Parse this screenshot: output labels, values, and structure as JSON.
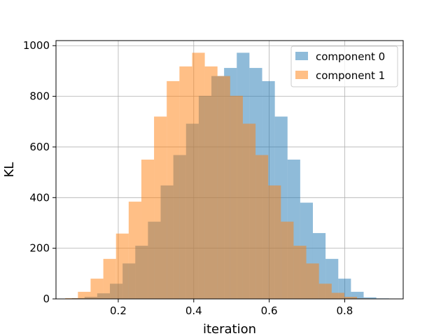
{
  "chart_data": {
    "type": "histogram",
    "title": "",
    "xlabel": "iteration",
    "ylabel": "KL",
    "xlim": [
      0.035,
      0.955
    ],
    "ylim": [
      0,
      1020
    ],
    "xticks": [
      0.2,
      0.4,
      0.6,
      0.8
    ],
    "xtick_labels": [
      "0.2",
      "0.4",
      "0.6",
      "0.8"
    ],
    "yticks": [
      0,
      200,
      400,
      600,
      800,
      1000
    ],
    "ytick_labels": [
      "0",
      "200",
      "400",
      "600",
      "800",
      "1000"
    ],
    "grid": true,
    "legend_position": "upper right",
    "series": [
      {
        "name": "component 0",
        "color": "#1f77b4",
        "alpha": 0.5,
        "bin_edges": [
          0.077,
          0.1106,
          0.1442,
          0.1779,
          0.2115,
          0.2451,
          0.2787,
          0.3123,
          0.3459,
          0.3796,
          0.4132,
          0.4468,
          0.4804,
          0.514,
          0.5476,
          0.5813,
          0.6149,
          0.6485,
          0.6821,
          0.7157,
          0.7493,
          0.783,
          0.8166,
          0.8502,
          0.8838,
          0.9174
        ],
        "counts": [
          3,
          8,
          22,
          60,
          140,
          210,
          305,
          448,
          568,
          692,
          802,
          880,
          912,
          972,
          912,
          860,
          720,
          550,
          380,
          260,
          158,
          80,
          28,
          6,
          2
        ]
      },
      {
        "name": "component 1",
        "color": "#ff7f0e",
        "alpha": 0.5,
        "bin_edges": [
          0.0595,
          0.0931,
          0.1267,
          0.1604,
          0.194,
          0.2276,
          0.2612,
          0.2948,
          0.3284,
          0.3621,
          0.3957,
          0.4293,
          0.4629,
          0.4965,
          0.5301,
          0.5638,
          0.5974,
          0.631,
          0.6646,
          0.6982,
          0.7318,
          0.7655,
          0.7991,
          0.8327,
          0.8663,
          0.8999
        ],
        "counts": [
          3,
          28,
          80,
          158,
          258,
          384,
          550,
          720,
          860,
          918,
          972,
          918,
          880,
          802,
          692,
          568,
          448,
          305,
          210,
          140,
          60,
          24,
          8,
          2,
          1
        ]
      }
    ]
  }
}
